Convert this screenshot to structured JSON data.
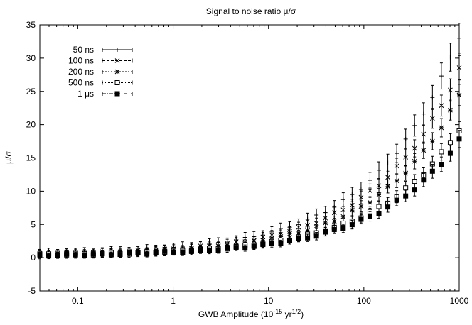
{
  "chart_data": {
    "type": "scatter",
    "title": "Signal to noise ratio μ/σ",
    "xlabel_main": "GWB Amplitude (10",
    "xlabel_exp1": "-15",
    "xlabel_mid": " yr",
    "xlabel_exp2": "1/2",
    "xlabel_end": ")",
    "ylabel": "μ/σ",
    "x_scale": "log",
    "xlim": [
      0.04,
      1000
    ],
    "ylim": [
      -5,
      35
    ],
    "x_ticks": [
      {
        "value": 0.1,
        "label": "0.1"
      },
      {
        "value": 1,
        "label": "1"
      },
      {
        "value": 10,
        "label": "10"
      },
      {
        "value": 100,
        "label": "100"
      },
      {
        "value": 1000,
        "label": "1000"
      }
    ],
    "y_ticks": [
      {
        "value": -5,
        "label": "-5"
      },
      {
        "value": 0,
        "label": "0"
      },
      {
        "value": 5,
        "label": "5"
      },
      {
        "value": 10,
        "label": "10"
      },
      {
        "value": 15,
        "label": "15"
      },
      {
        "value": 20,
        "label": "20"
      },
      {
        "value": 25,
        "label": "25"
      },
      {
        "value": 30,
        "label": "30"
      },
      {
        "value": 35,
        "label": "35"
      }
    ],
    "grid": false,
    "legend_position": "top-left",
    "x_range": [
      0.04,
      1000
    ],
    "n_points": 48,
    "series": [
      {
        "name": "50 ns",
        "marker": "plus",
        "y_high": 33.0,
        "noise": 0.6,
        "err_base": 0.6,
        "err_scale": 0.05
      },
      {
        "name": "100 ns",
        "marker": "cross",
        "y_high": 28.0,
        "noise": 0.55,
        "err_base": 0.55,
        "err_scale": 0.045
      },
      {
        "name": "200 ns",
        "marker": "star",
        "y_high": 24.0,
        "noise": 0.5,
        "err_base": 0.5,
        "err_scale": 0.045
      },
      {
        "name": "500 ns",
        "marker": "open-square",
        "y_high": 19.0,
        "noise": 0.45,
        "err_base": 0.45,
        "err_scale": 0.05
      },
      {
        "name": "1 μs",
        "marker": "filled-square",
        "y_high": 17.3,
        "noise": 0.4,
        "err_base": 0.4,
        "err_scale": 0.05
      }
    ]
  }
}
